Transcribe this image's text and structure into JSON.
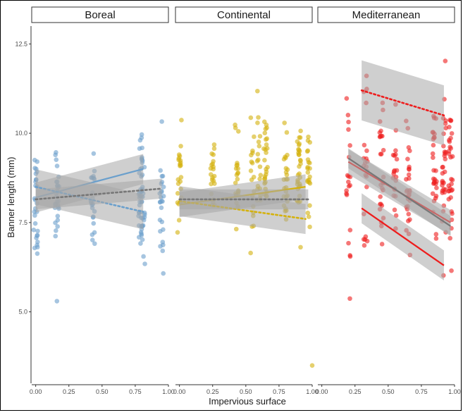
{
  "chart_data": {
    "type": "scatter",
    "facets": [
      "Boreal",
      "Continental",
      "Mediterranean"
    ],
    "xlabel": "Impervious surface",
    "ylabel": "Banner length (mm)",
    "x_ticks": [
      "0.00",
      "0.25",
      "0.50",
      "0.75",
      "1.00"
    ],
    "y_ticks": [
      "5.0",
      "7.5",
      "10.0",
      "12.5"
    ],
    "xlim": [
      -0.03,
      1.0
    ],
    "ylim": [
      3.0,
      13.0
    ],
    "colors": {
      "Boreal": "#6a9fcc",
      "Continental": "#d4b10c",
      "Mediterranean": "#ee1c1c",
      "overall": "#777777",
      "band": "#a8a8a8"
    },
    "panels": [
      {
        "name": "Boreal",
        "x_groups": [
          0.0,
          0.16,
          0.43,
          0.79,
          0.81,
          0.95
        ],
        "y_range": [
          5.3,
          11.0
        ],
        "fits": [
          {
            "style": "solid",
            "color": "Boreal",
            "x": [
              0.0,
              0.81
            ],
            "y": [
              8.2,
              9.0
            ],
            "se": 0.3
          },
          {
            "style": "dotted",
            "color": "Boreal",
            "x": [
              0.0,
              0.81
            ],
            "y": [
              8.5,
              7.8
            ],
            "se": 0.35
          },
          {
            "style": "dotted",
            "color": "overall",
            "x": [
              0.0,
              0.95
            ],
            "y": [
              8.15,
              8.45
            ],
            "se": 0.2
          }
        ]
      },
      {
        "name": "Continental",
        "x_groups": [
          0.0,
          0.25,
          0.43,
          0.55,
          0.6,
          0.65,
          0.8,
          0.9,
          0.97
        ],
        "y_range": [
          6.5,
          11.2
        ],
        "fits": [
          {
            "style": "solid",
            "color": "Continental",
            "x": [
              0.0,
              0.95
            ],
            "y": [
              8.0,
              8.5
            ],
            "se": 0.25
          },
          {
            "style": "dotted",
            "color": "Continental",
            "x": [
              0.0,
              0.95
            ],
            "y": [
              8.1,
              7.6
            ],
            "se": 0.3
          },
          {
            "style": "dotted",
            "color": "overall",
            "x": [
              0.0,
              0.97
            ],
            "y": [
              8.15,
              8.15
            ],
            "se": 0.2
          }
        ]
      },
      {
        "name": "Mediterranean",
        "x_groups": [
          0.2,
          0.33,
          0.45,
          0.55,
          0.65,
          0.85,
          0.92,
          0.97
        ],
        "y_range": [
          5.3,
          12.3
        ],
        "fits": [
          {
            "style": "solid",
            "color": "Mediterranean",
            "x": [
              0.2,
              0.97
            ],
            "y": [
              9.2,
              7.5
            ],
            "se": 0.25
          },
          {
            "style": "solid",
            "color": "Mediterranean",
            "x": [
              0.3,
              0.92
            ],
            "y": [
              7.9,
              6.3
            ],
            "se": 0.3
          },
          {
            "style": "dotted",
            "color": "Mediterranean",
            "x": [
              0.3,
              0.92
            ],
            "y": [
              11.2,
              10.5
            ],
            "se": 0.6
          },
          {
            "style": "solid",
            "color": "overall",
            "x": [
              0.2,
              0.97
            ],
            "y": [
              9.3,
              7.4
            ],
            "se": 0.2
          }
        ]
      }
    ],
    "outliers": [
      {
        "panel": "Continental",
        "x": 1.0,
        "y": 3.5
      },
      {
        "panel": "Boreal",
        "x": 0.16,
        "y": 5.3
      }
    ]
  }
}
